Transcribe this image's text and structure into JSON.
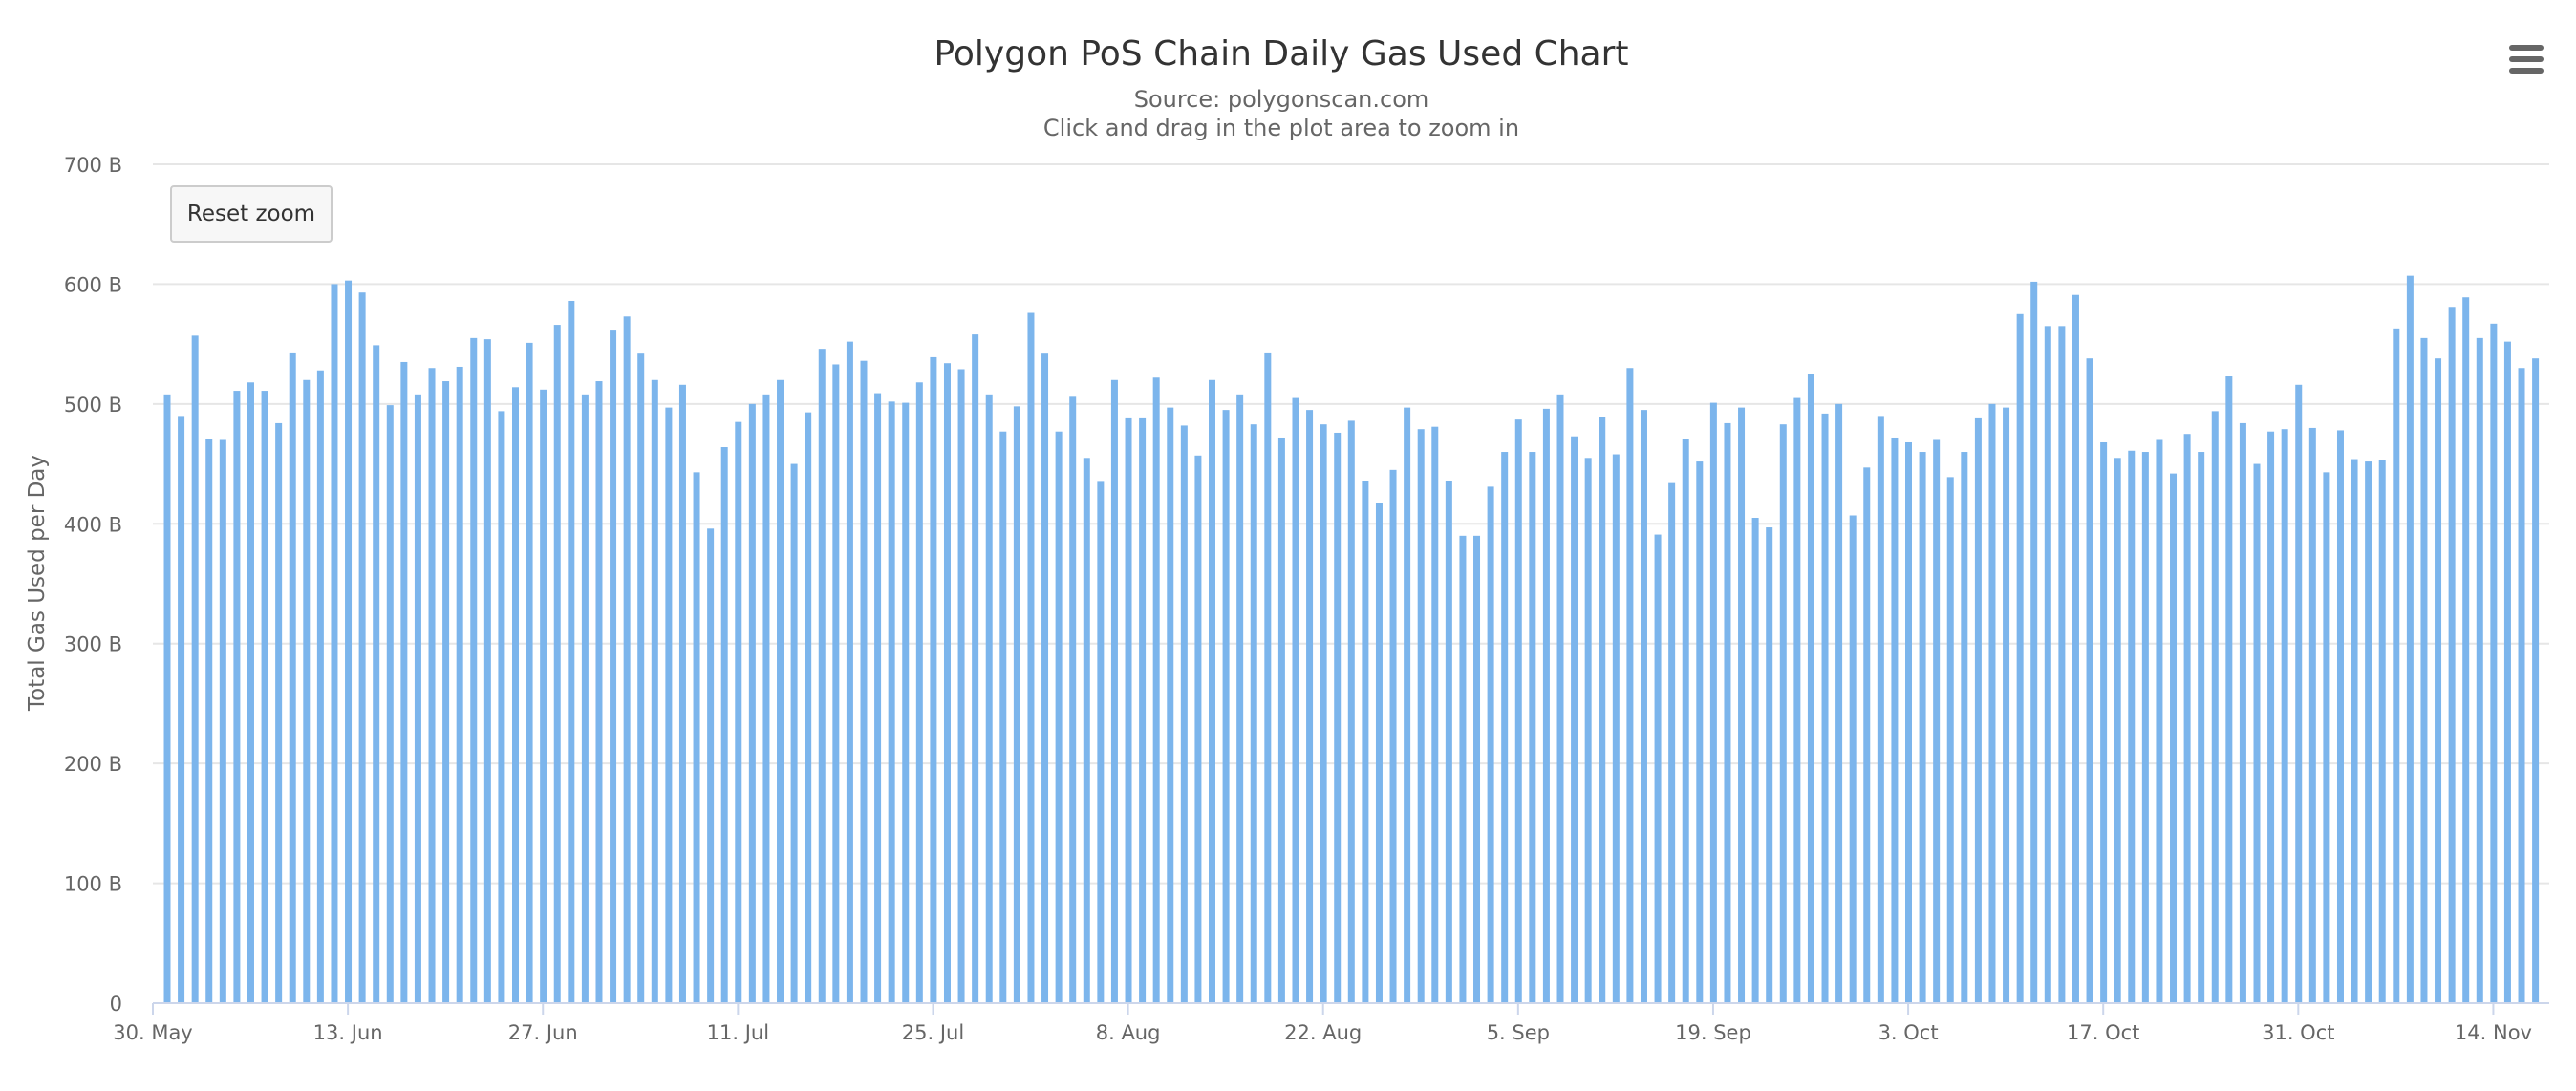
{
  "header": {
    "title": "Polygon PoS Chain Daily Gas Used Chart",
    "subtitle_source": "Source: polygonscan.com",
    "subtitle_hint": "Click and drag in the plot area to zoom in"
  },
  "controls": {
    "reset_zoom_label": "Reset zoom",
    "menu_icon": "hamburger-menu-icon"
  },
  "colors": {
    "bar": "#7cb5ec",
    "grid": "#e6e6e6",
    "axis": "#ccd6eb"
  },
  "chart_data": {
    "type": "bar",
    "title": "Polygon PoS Chain Daily Gas Used Chart",
    "subtitle": "Source: polygonscan.com",
    "xlabel": "",
    "ylabel": "Total Gas Used per Day",
    "x_start": "30. May",
    "x_end": "18. Nov",
    "ylim": [
      0,
      700
    ],
    "y_unit": "B",
    "yticks": [
      "0",
      "100 B",
      "200 B",
      "300 B",
      "400 B",
      "500 B",
      "600 B",
      "700 B"
    ],
    "xticks": [
      "30. May",
      "13. Jun",
      "27. Jun",
      "11. Jul",
      "25. Jul",
      "8. Aug",
      "22. Aug",
      "5. Sep",
      "19. Sep",
      "3. Oct",
      "17. Oct",
      "31. Oct",
      "14. Nov"
    ],
    "grid": true,
    "legend": "none",
    "values": [
      508,
      490,
      557,
      471,
      470,
      511,
      518,
      511,
      484,
      543,
      520,
      528,
      600,
      603,
      593,
      549,
      499,
      535,
      508,
      530,
      519,
      531,
      555,
      554,
      494,
      514,
      551,
      512,
      566,
      586,
      508,
      519,
      562,
      573,
      542,
      520,
      497,
      516,
      443,
      396,
      464,
      485,
      500,
      508,
      520,
      450,
      493,
      546,
      533,
      552,
      536,
      509,
      502,
      501,
      518,
      539,
      534,
      529,
      558,
      508,
      477,
      498,
      576,
      542,
      477,
      506,
      455,
      435,
      520,
      488,
      488,
      522,
      497,
      482,
      457,
      520,
      495,
      508,
      483,
      543,
      472,
      505,
      495,
      483,
      476,
      486,
      436,
      417,
      445,
      497,
      479,
      481,
      436,
      390,
      390,
      431,
      460,
      487,
      460,
      496,
      508,
      473,
      455,
      489,
      458,
      530,
      495,
      391,
      434,
      471,
      452,
      501,
      484,
      497,
      405,
      397,
      483,
      505,
      525,
      492,
      500,
      407,
      447,
      490,
      472,
      468,
      460,
      470,
      439,
      460,
      488,
      500,
      497,
      575,
      602,
      565,
      565,
      591,
      538,
      468,
      455,
      461,
      460,
      470,
      442,
      475,
      460,
      494,
      523,
      484,
      450,
      477,
      479,
      516,
      480,
      443,
      478,
      454,
      452,
      453,
      563,
      607,
      555,
      538,
      581,
      589,
      555,
      567,
      552,
      530,
      538
    ]
  }
}
